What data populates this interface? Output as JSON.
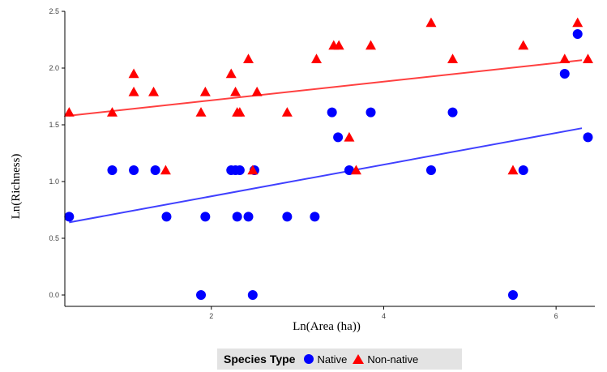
{
  "chart_data": {
    "type": "scatter",
    "xlabel": "Ln(Area (ha))",
    "ylabel": "Ln(Richness)",
    "xlim": [
      0.3,
      6.45
    ],
    "ylim": [
      -0.1,
      2.5
    ],
    "x_ticks": [
      2,
      4,
      6
    ],
    "y_ticks": [
      0.0,
      0.5,
      1.0,
      1.5,
      2.0,
      2.5
    ],
    "y_tick_labels": [
      "0.0",
      "0.5",
      "1.0",
      "1.5",
      "2.0",
      "2.5"
    ],
    "grid": false,
    "legend": {
      "title": "Species Type",
      "position": "bottom"
    },
    "series": [
      {
        "name": "Native",
        "color": "#0000ff",
        "marker": "circle",
        "x": [
          0.35,
          0.85,
          1.1,
          1.35,
          1.48,
          1.88,
          1.93,
          2.23,
          2.28,
          2.3,
          2.33,
          2.43,
          2.48,
          2.5,
          2.88,
          3.2,
          3.4,
          3.47,
          3.6,
          3.85,
          4.55,
          4.8,
          5.5,
          5.62,
          6.1,
          6.25,
          6.37
        ],
        "y": [
          0.69,
          1.1,
          1.1,
          1.1,
          0.69,
          0.0,
          0.69,
          1.1,
          1.1,
          0.69,
          1.1,
          0.69,
          0.0,
          1.1,
          0.69,
          0.69,
          1.61,
          1.39,
          1.1,
          1.61,
          1.1,
          1.61,
          0.0,
          1.1,
          1.95,
          2.3,
          1.39
        ]
      },
      {
        "name": "Non-native",
        "color": "#ff0000",
        "marker": "triangle",
        "x": [
          0.35,
          0.85,
          1.1,
          1.1,
          1.33,
          1.47,
          1.88,
          1.93,
          2.23,
          2.28,
          2.3,
          2.33,
          2.43,
          2.48,
          2.53,
          2.88,
          3.22,
          3.42,
          3.48,
          3.6,
          3.68,
          3.85,
          4.55,
          4.8,
          5.5,
          5.62,
          6.1,
          6.25,
          6.37
        ],
        "y": [
          1.61,
          1.61,
          1.95,
          1.79,
          1.79,
          1.1,
          1.61,
          1.79,
          1.95,
          1.79,
          1.61,
          1.61,
          2.08,
          1.1,
          1.79,
          1.61,
          2.08,
          2.2,
          2.2,
          1.39,
          1.1,
          2.2,
          2.4,
          2.08,
          1.1,
          2.2,
          2.08,
          2.4,
          2.08
        ]
      }
    ],
    "trendlines": [
      {
        "series": "Native",
        "color": "#4040ff",
        "x": [
          0.35,
          6.3
        ],
        "y": [
          0.64,
          1.47
        ]
      },
      {
        "series": "Non-native",
        "color": "#ff4040",
        "x": [
          0.35,
          6.3
        ],
        "y": [
          1.58,
          2.07
        ]
      }
    ]
  }
}
